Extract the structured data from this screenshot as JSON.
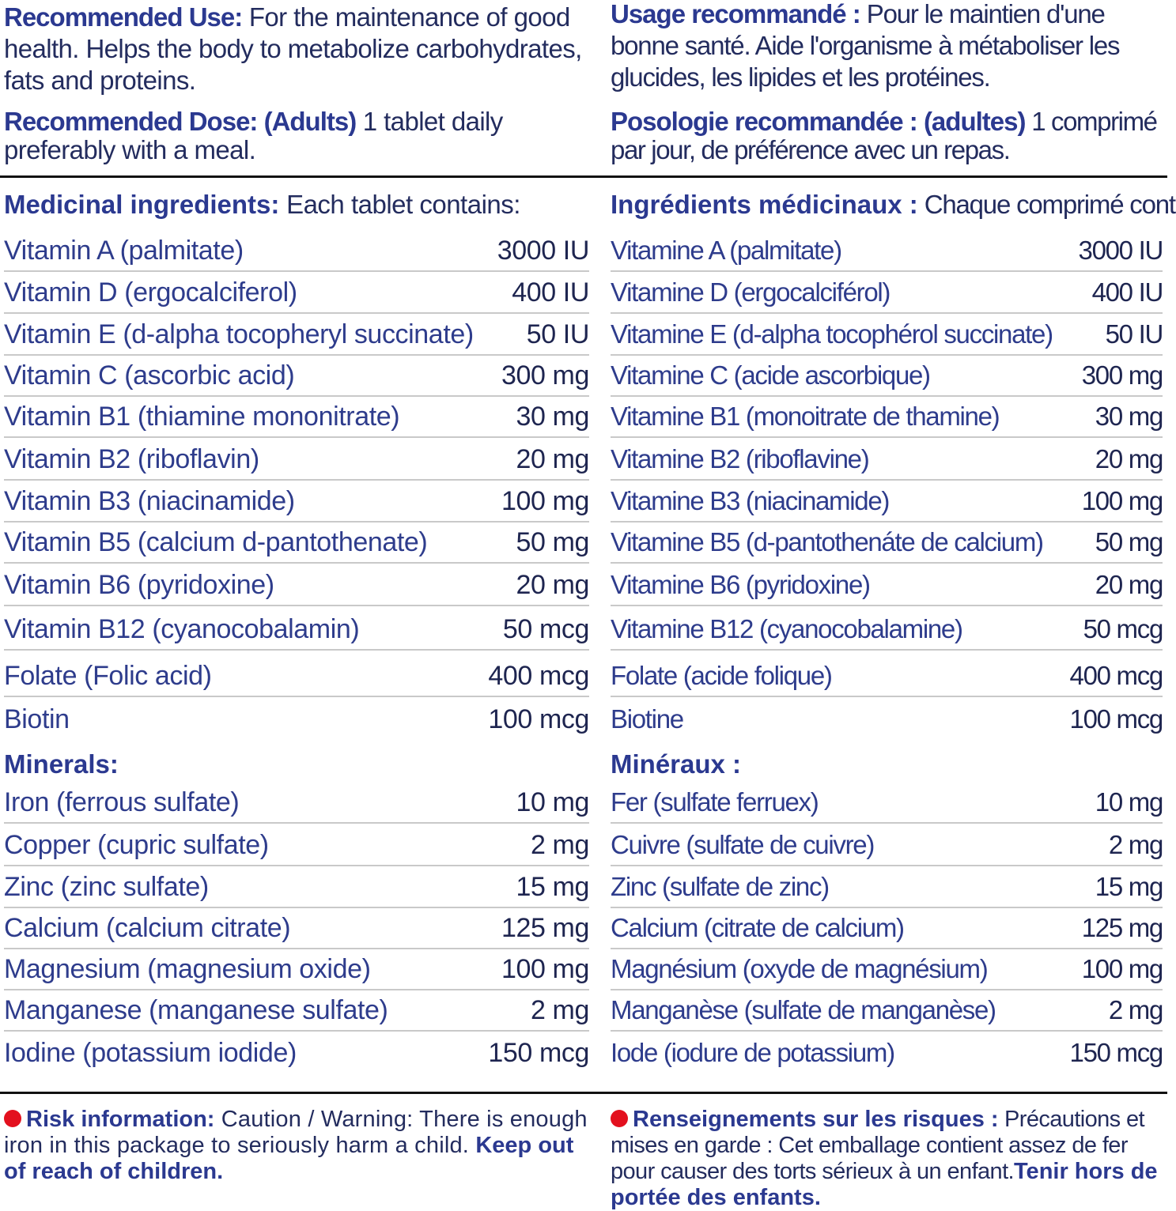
{
  "colors": {
    "label_blue": "#2b3990",
    "text_navy": "#232c5e",
    "risk_dot": "#e3101e"
  },
  "en": {
    "use_label": "Recommended Use:",
    "use_text": "For the maintenance of good health. Helps the body to metabolize carbohydrates, fats and proteins.",
    "dose_label": "Recommended Dose: (Adults)",
    "dose_text": "1 tablet daily preferably with a meal.",
    "medicinal_label": "Medicinal ingredients:",
    "medicinal_text": "Each tablet contains:",
    "vitamins": [
      {
        "name": "Vitamin A (palmitate)",
        "amount": "3000 IU"
      },
      {
        "name": "Vitamin D (ergocalciferol)",
        "amount": "400 IU"
      },
      {
        "name": "Vitamin E (d-alpha tocopheryl succinate)",
        "amount": "50 IU"
      },
      {
        "name": "Vitamin C (ascorbic acid)",
        "amount": "300 mg"
      },
      {
        "name": "Vitamin B1 (thiamine mononitrate)",
        "amount": "30 mg"
      },
      {
        "name": "Vitamin B2 (riboflavin)",
        "amount": "20 mg"
      },
      {
        "name": "Vitamin B3 (niacinamide)",
        "amount": "100 mg"
      },
      {
        "name": "Vitamin B5 (calcium d-pantothenate)",
        "amount": "50 mg"
      },
      {
        "name": "Vitamin B6 (pyridoxine)",
        "amount": "20 mg"
      },
      {
        "name": "Vitamin B12 (cyanocobalamin)",
        "amount": "50 mcg"
      },
      {
        "name": "Folate (Folic acid)",
        "amount": "400 mcg"
      },
      {
        "name": "Biotin",
        "amount": "100 mcg"
      }
    ],
    "minerals_label": "Minerals:",
    "minerals": [
      {
        "name": "Iron (ferrous sulfate)",
        "amount": "10 mg"
      },
      {
        "name": "Copper (cupric sulfate)",
        "amount": "2 mg"
      },
      {
        "name": "Zinc (zinc sulfate)",
        "amount": "15 mg"
      },
      {
        "name": "Calcium (calcium citrate)",
        "amount": "125 mg"
      },
      {
        "name": "Magnesium (magnesium oxide)",
        "amount": "100 mg"
      },
      {
        "name": "Manganese (manganese sulfate)",
        "amount": "2 mg"
      },
      {
        "name": "Iodine (potassium iodide)",
        "amount": "150 mcg"
      }
    ],
    "risk_label": "Risk information:",
    "risk_text": "Caution / Warning: There is enough iron in this package to seriously harm a child.",
    "risk_bold": "Keep out of reach of children."
  },
  "fr": {
    "use_label": "Usage recommandé :",
    "use_text": "Pour le maintien d'une bonne santé. Aide l'organisme à métaboliser les glucides, les lipides et les protéines.",
    "dose_label": "Posologie recommandée : (adultes)",
    "dose_text": "1 comprimé par jour, de préférence avec un repas.",
    "medicinal_label": "Ingrédients médicinaux :",
    "medicinal_text": "Chaque comprimé contient :",
    "vitamins": [
      {
        "name": "Vitamine A (palmitate)",
        "amount": "3000 IU"
      },
      {
        "name": "Vitamine D (ergocalciférol)",
        "amount": "400 IU"
      },
      {
        "name": "Vitamine E (d-alpha tocophérol succinate)",
        "amount": "50 IU"
      },
      {
        "name": "Vitamine C (acide ascorbique)",
        "amount": "300 mg"
      },
      {
        "name": "Vitamine B1 (monoitrate de thamine)",
        "amount": "30 mg"
      },
      {
        "name": "Vitamine B2 (riboflavine)",
        "amount": "20 mg"
      },
      {
        "name": "Vitamine B3 (niacinamide)",
        "amount": "100 mg"
      },
      {
        "name": "Vitamine B5 (d-pantothenáte de calcium)",
        "amount": "50 mg"
      },
      {
        "name": "Vitamine B6 (pyridoxine)",
        "amount": "20 mg"
      },
      {
        "name": "Vitamine B12 (cyanocobalamine)",
        "amount": "50 mcg"
      },
      {
        "name": "Folate (acide folique)",
        "amount": "400 mcg"
      },
      {
        "name": "Biotine",
        "amount": "100 mcg"
      }
    ],
    "minerals_label": "Minéraux :",
    "minerals": [
      {
        "name": "Fer (sulfate ferruex)",
        "amount": "10 mg"
      },
      {
        "name": "Cuivre (sulfate de cuivre)",
        "amount": "2 mg"
      },
      {
        "name": "Zinc (sulfate de zinc)",
        "amount": "15 mg"
      },
      {
        "name": "Calcium (citrate de calcium)",
        "amount": "125 mg"
      },
      {
        "name": "Magnésium (oxyde de magnésium)",
        "amount": "100 mg"
      },
      {
        "name": "Manganèse (sulfate de manganèse)",
        "amount": "2 mg"
      },
      {
        "name": "Iode (iodure de potassium)",
        "amount": "150 mcg"
      }
    ],
    "risk_label": "Renseignements sur les risques :",
    "risk_text": "Précautions et mises en garde : Cet emballage contient assez de fer pour causer des torts sérieux à un enfant.",
    "risk_bold": "Tenir hors de portée des enfants."
  }
}
